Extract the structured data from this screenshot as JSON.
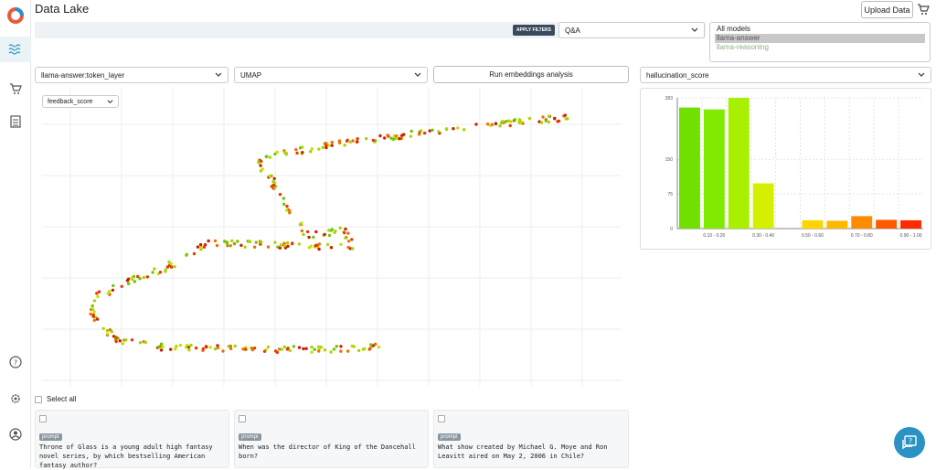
{
  "app": {
    "title": "Data Lake",
    "upload_label": "Upload Data"
  },
  "filters": {
    "apply_label": "APPLY FILTERS",
    "task_select": "Q&A",
    "models": [
      "All models",
      "llama-answer",
      "llama-reasoning"
    ],
    "selected_model": "llama-answer"
  },
  "controls": {
    "layer_select": "llama-answer:token_layer",
    "method_select": "UMAP",
    "run_label": "Run embeddings analysis",
    "metric_select": "hallucination_score",
    "color_by_select": "feedback_score"
  },
  "histogram": {
    "type": "bar",
    "categories": [
      "0.00 - 0.10",
      "0.10 - 0.20",
      "0.20 - 0.30",
      "0.30 - 0.40",
      "0.40 - 0.50",
      "0.50 - 0.60",
      "0.60 - 0.70",
      "0.70 - 0.80",
      "0.80 - 0.90",
      "0.90 - 1.00"
    ],
    "values": [
      262,
      258,
      283,
      98,
      0,
      18,
      17,
      27,
      19,
      18
    ],
    "colors": [
      "#6fe000",
      "#80ea00",
      "#a8f000",
      "#d4f000",
      "#ffffff",
      "#ffd400",
      "#ffb800",
      "#ff8c00",
      "#ff5a00",
      "#ff2a00"
    ],
    "ytick_labels": [
      "0",
      "75",
      "150",
      "283"
    ],
    "ytick_values": [
      0,
      75,
      150,
      283
    ],
    "xtick_labels_shown": [
      "0.10 - 0.20",
      "0.30 - 0.40",
      "0.50 - 0.60",
      "0.70 - 0.80",
      "0.90 - 1.00"
    ],
    "ylim": [
      0,
      283
    ]
  },
  "select_all_label": "Select all",
  "cards": [
    {
      "tag": "prompt",
      "text": "Throne of Glass is a young adult high fantasy novel series, by which bestselling American fantasy author?"
    },
    {
      "tag": "prompt",
      "text": "When was the director of King of the Dancehall born?"
    },
    {
      "tag": "prompt",
      "text": "What show created by Michael G. Moye and Ron Leavitt aired on May 2, 2006 in Chile?"
    }
  ],
  "colors": {
    "accent": "#2a93c4",
    "apply_bg": "#3a4a5c",
    "filter_bar": "#eef2f5"
  }
}
